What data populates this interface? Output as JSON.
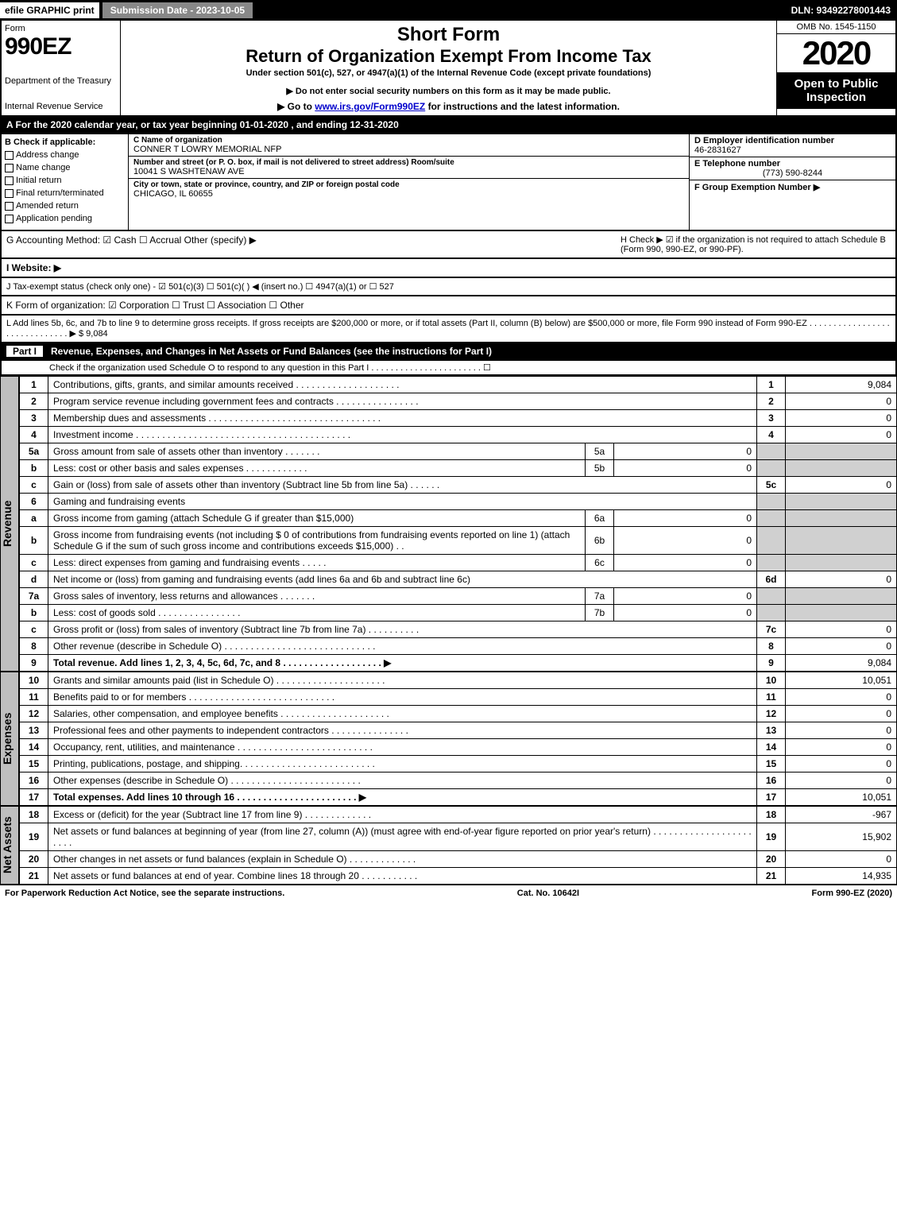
{
  "topbar": {
    "efile": "efile GRAPHIC print",
    "submission": "Submission Date - 2023-10-05",
    "dln": "DLN: 93492278001443"
  },
  "header": {
    "form_word": "Form",
    "form_num": "990EZ",
    "dept1": "Department of the Treasury",
    "dept2": "Internal Revenue Service",
    "title1": "Short Form",
    "title2": "Return of Organization Exempt From Income Tax",
    "sub1": "Under section 501(c), 527, or 4947(a)(1) of the Internal Revenue Code (except private foundations)",
    "sub2": "▶ Do not enter social security numbers on this form as it may be made public.",
    "sub3_pre": "▶ Go to ",
    "sub3_link": "www.irs.gov/Form990EZ",
    "sub3_post": " for instructions and the latest information.",
    "omb": "OMB No. 1545-1150",
    "year": "2020",
    "inspect1": "Open to Public",
    "inspect2": "Inspection"
  },
  "calyear": "A For the 2020 calendar year, or tax year beginning 01-01-2020 , and ending 12-31-2020",
  "boxB": {
    "label": "B  Check if applicable:",
    "items": [
      "Address change",
      "Name change",
      "Initial return",
      "Final return/terminated",
      "Amended return",
      "Application pending"
    ]
  },
  "boxC": {
    "lbl": "C Name of organization",
    "val": "CONNER T LOWRY MEMORIAL NFP",
    "addr_lbl": "Number and street (or P. O. box, if mail is not delivered to street address)    Room/suite",
    "addr": "10041 S WASHTENAW AVE",
    "city_lbl": "City or town, state or province, country, and ZIP or foreign postal code",
    "city": "CHICAGO, IL  60655"
  },
  "boxD": {
    "lbl": "D Employer identification number",
    "val": "46-2831627"
  },
  "boxE": {
    "lbl": "E Telephone number",
    "val": "(773) 590-8244"
  },
  "boxF": {
    "lbl": "F Group Exemption Number  ▶",
    "val": ""
  },
  "lineG": "G Accounting Method:   ☑ Cash   ☐ Accrual   Other (specify) ▶",
  "lineH": "H  Check ▶ ☑ if the organization is not required to attach Schedule B (Form 990, 990-EZ, or 990-PF).",
  "lineI": "I Website: ▶",
  "lineJ": "J Tax-exempt status (check only one) - ☑ 501(c)(3)  ☐ 501(c)(  ) ◀ (insert no.)  ☐ 4947(a)(1) or  ☐ 527",
  "lineK": "K Form of organization:  ☑ Corporation   ☐ Trust   ☐ Association   ☐ Other",
  "lineL": "L Add lines 5b, 6c, and 7b to line 9 to determine gross receipts. If gross receipts are $200,000 or more, or if total assets (Part II, column (B) below) are $500,000 or more, file Form 990 instead of Form 990-EZ . . . . . . . . . . . . . . . . . . . . . . . . . . . . . . ▶ $ 9,084",
  "part1": {
    "label": "Part I",
    "title": "Revenue, Expenses, and Changes in Net Assets or Fund Balances (see the instructions for Part I)",
    "check": "Check if the organization used Schedule O to respond to any question in this Part I . . . . . . . . . . . . . . . . . . . . . . . ☐"
  },
  "side": {
    "rev": "Revenue",
    "exp": "Expenses",
    "na": "Net Assets"
  },
  "lines": [
    {
      "n": "1",
      "d": "Contributions, gifts, grants, and similar amounts received . . . . . . . . . . . . . . . . . . . .",
      "r": "1",
      "v": "9,084"
    },
    {
      "n": "2",
      "d": "Program service revenue including government fees and contracts . . . . . . . . . . . . . . . .",
      "r": "2",
      "v": "0"
    },
    {
      "n": "3",
      "d": "Membership dues and assessments . . . . . . . . . . . . . . . . . . . . . . . . . . . . . . . . .",
      "r": "3",
      "v": "0"
    },
    {
      "n": "4",
      "d": "Investment income . . . . . . . . . . . . . . . . . . . . . . . . . . . . . . . . . . . . . . . . .",
      "r": "4",
      "v": "0"
    }
  ],
  "lines_sub": [
    {
      "n": "5a",
      "d": "Gross amount from sale of assets other than inventory . . . . . . .",
      "sn": "5a",
      "sv": "0"
    },
    {
      "n": "b",
      "d": "Less: cost or other basis and sales expenses . . . . . . . . . . . .",
      "sn": "5b",
      "sv": "0"
    },
    {
      "n": "c",
      "d": "Gain or (loss) from sale of assets other than inventory (Subtract line 5b from line 5a) . . . . . .",
      "r": "5c",
      "v": "0"
    },
    {
      "n": "6",
      "d": "Gaming and fundraising events"
    },
    {
      "n": "a",
      "d": "Gross income from gaming (attach Schedule G if greater than $15,000)",
      "sn": "6a",
      "sv": "0"
    },
    {
      "n": "b",
      "d": "Gross income from fundraising events (not including $ 0 of contributions from fundraising events reported on line 1) (attach Schedule G if the sum of such gross income and contributions exceeds $15,000) . .",
      "sn": "6b",
      "sv": "0"
    },
    {
      "n": "c",
      "d": "Less: direct expenses from gaming and fundraising events . . . . .",
      "sn": "6c",
      "sv": "0"
    },
    {
      "n": "d",
      "d": "Net income or (loss) from gaming and fundraising events (add lines 6a and 6b and subtract line 6c)",
      "r": "6d",
      "v": "0"
    },
    {
      "n": "7a",
      "d": "Gross sales of inventory, less returns and allowances . . . . . . .",
      "sn": "7a",
      "sv": "0"
    },
    {
      "n": "b",
      "d": "Less: cost of goods sold      . . . . . . . . . . . . . . . .",
      "sn": "7b",
      "sv": "0"
    },
    {
      "n": "c",
      "d": "Gross profit or (loss) from sales of inventory (Subtract line 7b from line 7a) . . . . . . . . . .",
      "r": "7c",
      "v": "0"
    },
    {
      "n": "8",
      "d": "Other revenue (describe in Schedule O) . . . . . . . . . . . . . . . . . . . . . . . . . . . . .",
      "r": "8",
      "v": "0"
    },
    {
      "n": "9",
      "d": "Total revenue. Add lines 1, 2, 3, 4, 5c, 6d, 7c, and 8 . . . . . . . . . . . . . . . . . . . ▶",
      "r": "9",
      "v": "9,084",
      "bold": true
    }
  ],
  "exp_lines": [
    {
      "n": "10",
      "d": "Grants and similar amounts paid (list in Schedule O) . . . . . . . . . . . . . . . . . . . . .",
      "r": "10",
      "v": "10,051"
    },
    {
      "n": "11",
      "d": "Benefits paid to or for members      . . . . . . . . . . . . . . . . . . . . . . . . . . . .",
      "r": "11",
      "v": "0"
    },
    {
      "n": "12",
      "d": "Salaries, other compensation, and employee benefits . . . . . . . . . . . . . . . . . . . . .",
      "r": "12",
      "v": "0"
    },
    {
      "n": "13",
      "d": "Professional fees and other payments to independent contractors . . . . . . . . . . . . . . .",
      "r": "13",
      "v": "0"
    },
    {
      "n": "14",
      "d": "Occupancy, rent, utilities, and maintenance . . . . . . . . . . . . . . . . . . . . . . . . . .",
      "r": "14",
      "v": "0"
    },
    {
      "n": "15",
      "d": "Printing, publications, postage, and shipping. . . . . . . . . . . . . . . . . . . . . . . . . .",
      "r": "15",
      "v": "0"
    },
    {
      "n": "16",
      "d": "Other expenses (describe in Schedule O)    . . . . . . . . . . . . . . . . . . . . . . . . .",
      "r": "16",
      "v": "0"
    },
    {
      "n": "17",
      "d": "Total expenses. Add lines 10 through 16    . . . . . . . . . . . . . . . . . . . . . . . ▶",
      "r": "17",
      "v": "10,051",
      "bold": true
    }
  ],
  "na_lines": [
    {
      "n": "18",
      "d": "Excess or (deficit) for the year (Subtract line 17 from line 9)      . . . . . . . . . . . . .",
      "r": "18",
      "v": "-967"
    },
    {
      "n": "19",
      "d": "Net assets or fund balances at beginning of year (from line 27, column (A)) (must agree with end-of-year figure reported on prior year's return) . . . . . . . . . . . . . . . . . . . . . . .",
      "r": "19",
      "v": "15,902"
    },
    {
      "n": "20",
      "d": "Other changes in net assets or fund balances (explain in Schedule O) . . . . . . . . . . . . .",
      "r": "20",
      "v": "0"
    },
    {
      "n": "21",
      "d": "Net assets or fund balances at end of year. Combine lines 18 through 20 . . . . . . . . . . .",
      "r": "21",
      "v": "14,935"
    }
  ],
  "footer": {
    "left": "For Paperwork Reduction Act Notice, see the separate instructions.",
    "mid": "Cat. No. 10642I",
    "right": "Form 990-EZ (2020)"
  }
}
